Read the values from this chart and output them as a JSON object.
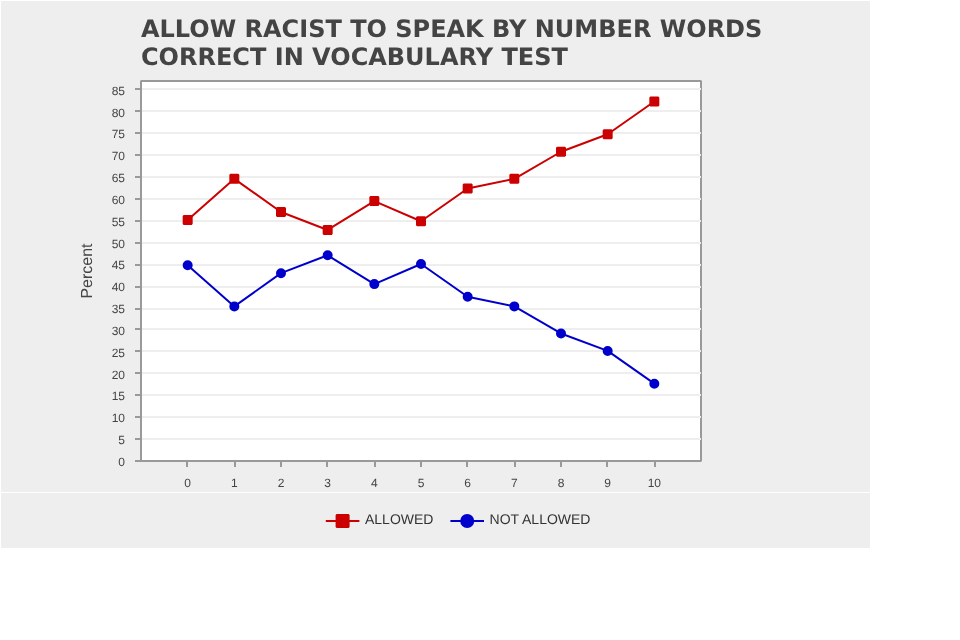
{
  "chart_data": {
    "type": "line",
    "title": "ALLOW RACIST TO SPEAK BY NUMBER WORDS\nCORRECT IN VOCABULARY TEST",
    "ylabel": "Percent",
    "categories": [
      "0",
      "1",
      "2",
      "3",
      "4",
      "5",
      "6",
      "7",
      "8",
      "9",
      "10"
    ],
    "series": [
      {
        "name": "ALLOWED",
        "color": "#cc0000",
        "marker": "square",
        "values": [
          55.2,
          64.6,
          57.0,
          52.9,
          59.5,
          54.9,
          62.4,
          64.6,
          70.8,
          74.8,
          82.3
        ]
      },
      {
        "name": "NOT ALLOWED",
        "color": "#0000cc",
        "marker": "circle",
        "values": [
          44.8,
          35.4,
          43.0,
          47.1,
          40.5,
          45.1,
          37.6,
          35.4,
          29.2,
          25.2,
          17.7
        ]
      }
    ],
    "ylim": [
      0,
      87
    ],
    "yticks": [
      0,
      5,
      10,
      15,
      20,
      25,
      30,
      35,
      40,
      45,
      50,
      55,
      60,
      65,
      70,
      75,
      80,
      85
    ],
    "grid": "y",
    "legend": "bottom",
    "line_style": "solid"
  }
}
